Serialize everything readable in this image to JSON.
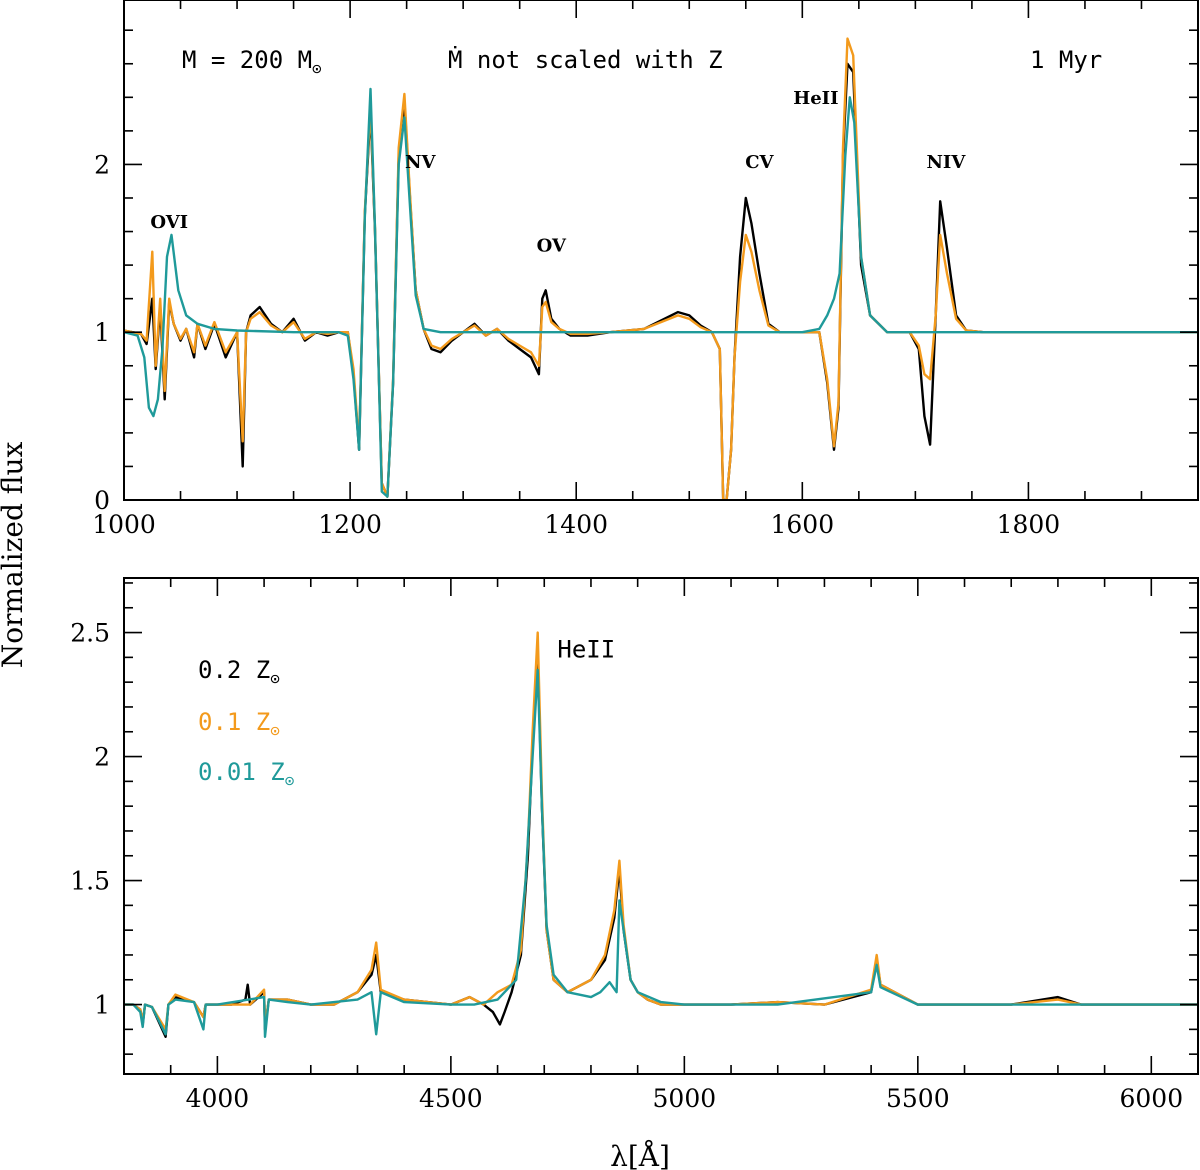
{
  "figure": {
    "ylabel": "Normalized flux",
    "xlabel": "λ[Å]"
  },
  "legend": [
    {
      "label": "0.2 Z",
      "color": "#000000"
    },
    {
      "label": "0.1 Z",
      "color": "#f39a1c"
    },
    {
      "label": "0.01 Z",
      "color": "#1f9a9a"
    }
  ],
  "solar_symbol": "⊙",
  "chart_data": [
    {
      "type": "line",
      "title": "",
      "annotations": {
        "mass": "M = 200 M",
        "mdot": "Ṁ not scaled with Z",
        "age": "1 Myr"
      },
      "line_labels": [
        {
          "text": "OVI",
          "x": 1040,
          "y": 1.62
        },
        {
          "text": "NV",
          "x": 1262,
          "y": 1.98
        },
        {
          "text": "OV",
          "x": 1378,
          "y": 1.48
        },
        {
          "text": "CV",
          "x": 1562,
          "y": 1.98
        },
        {
          "text": "HeII",
          "x": 1612,
          "y": 2.36
        },
        {
          "text": "NIV",
          "x": 1727,
          "y": 1.98
        }
      ],
      "xlim": [
        1000,
        1950
      ],
      "ylim": [
        0,
        2.98
      ],
      "xticks": [
        1000,
        1200,
        1400,
        1600,
        1800
      ],
      "xtick_labels": [
        "1000",
        "1200",
        "1400",
        "1600",
        "1800"
      ],
      "yticks": [
        0,
        1,
        2
      ],
      "ytick_labels": [
        "0",
        "1",
        "2"
      ],
      "series": [
        {
          "name": "0.2 Z⊙",
          "color": "#000000",
          "x": [
            1000,
            1015,
            1020,
            1025,
            1028,
            1032,
            1036,
            1040,
            1044,
            1050,
            1055,
            1062,
            1065,
            1072,
            1080,
            1090,
            1100,
            1105,
            1108,
            1112,
            1120,
            1130,
            1140,
            1150,
            1160,
            1170,
            1180,
            1190,
            1198,
            1203,
            1208,
            1213,
            1218,
            1222,
            1228,
            1233,
            1238,
            1243,
            1248,
            1253,
            1258,
            1265,
            1272,
            1280,
            1290,
            1300,
            1310,
            1320,
            1330,
            1340,
            1350,
            1360,
            1367,
            1370,
            1373,
            1378,
            1385,
            1395,
            1410,
            1430,
            1460,
            1490,
            1500,
            1510,
            1520,
            1527,
            1530,
            1533,
            1537,
            1540,
            1545,
            1550,
            1555,
            1562,
            1570,
            1580,
            1600,
            1615,
            1622,
            1628,
            1632,
            1636,
            1640,
            1645,
            1652,
            1660,
            1675,
            1695,
            1703,
            1708,
            1713,
            1718,
            1722,
            1728,
            1736,
            1745,
            1760,
            1780,
            1800,
            1820,
            1850,
            1900,
            1950
          ],
          "y": [
            1.01,
            0.99,
            0.93,
            1.2,
            0.78,
            1.15,
            0.6,
            1.18,
            1.05,
            0.95,
            1.02,
            0.85,
            1.05,
            0.9,
            1.05,
            0.85,
            1.0,
            0.2,
            1.0,
            1.1,
            1.15,
            1.05,
            1.0,
            1.08,
            0.95,
            1.0,
            0.98,
            1.0,
            1.0,
            0.75,
            0.3,
            1.7,
            2.32,
            1.6,
            0.1,
            0.02,
            0.7,
            2.05,
            2.38,
            1.8,
            1.25,
            1.02,
            0.9,
            0.88,
            0.95,
            1.0,
            1.05,
            0.98,
            1.02,
            0.95,
            0.9,
            0.85,
            0.75,
            1.2,
            1.25,
            1.08,
            1.02,
            0.98,
            0.98,
            1.0,
            1.02,
            1.12,
            1.1,
            1.04,
            1.0,
            0.9,
            0.0,
            0.0,
            0.3,
            0.85,
            1.45,
            1.8,
            1.65,
            1.35,
            1.05,
            1.0,
            1.0,
            1.0,
            0.7,
            0.3,
            0.55,
            2.05,
            2.6,
            2.55,
            1.4,
            1.1,
            1.0,
            1.0,
            0.9,
            0.5,
            0.33,
            1.1,
            1.78,
            1.5,
            1.1,
            1.01,
            1.0,
            1.0,
            1.0,
            1.0,
            1.0,
            1.0,
            1.0
          ]
        },
        {
          "name": "0.1 Z⊙",
          "color": "#f39a1c",
          "x": [
            1000,
            1015,
            1020,
            1025,
            1028,
            1032,
            1036,
            1040,
            1044,
            1050,
            1055,
            1062,
            1065,
            1072,
            1080,
            1090,
            1100,
            1105,
            1108,
            1112,
            1120,
            1130,
            1140,
            1150,
            1160,
            1170,
            1180,
            1190,
            1198,
            1203,
            1208,
            1213,
            1218,
            1222,
            1228,
            1233,
            1238,
            1243,
            1248,
            1253,
            1258,
            1265,
            1272,
            1280,
            1290,
            1300,
            1310,
            1320,
            1330,
            1340,
            1350,
            1360,
            1367,
            1370,
            1373,
            1378,
            1385,
            1395,
            1410,
            1430,
            1460,
            1490,
            1500,
            1510,
            1520,
            1527,
            1530,
            1533,
            1537,
            1540,
            1545,
            1550,
            1555,
            1562,
            1570,
            1580,
            1600,
            1615,
            1622,
            1628,
            1632,
            1636,
            1640,
            1645,
            1652,
            1660,
            1675,
            1695,
            1703,
            1708,
            1713,
            1718,
            1722,
            1728,
            1736,
            1745,
            1760,
            1780,
            1800,
            1820,
            1850,
            1900,
            1950
          ],
          "y": [
            1.01,
            0.99,
            0.95,
            1.48,
            0.8,
            1.2,
            0.65,
            1.2,
            1.05,
            0.96,
            1.02,
            0.88,
            1.05,
            0.92,
            1.06,
            0.88,
            1.0,
            0.35,
            1.0,
            1.08,
            1.12,
            1.04,
            1.0,
            1.06,
            0.96,
            1.0,
            0.99,
            1.0,
            1.0,
            0.78,
            0.32,
            1.72,
            2.35,
            1.62,
            0.1,
            0.02,
            0.72,
            2.1,
            2.42,
            1.82,
            1.25,
            1.02,
            0.92,
            0.9,
            0.96,
            1.0,
            1.04,
            0.98,
            1.02,
            0.96,
            0.92,
            0.88,
            0.8,
            1.15,
            1.18,
            1.06,
            1.02,
            0.99,
            0.99,
            1.0,
            1.02,
            1.1,
            1.08,
            1.03,
            1.0,
            0.9,
            0.0,
            0.0,
            0.3,
            0.85,
            1.3,
            1.58,
            1.48,
            1.25,
            1.04,
            1.0,
            1.0,
            1.0,
            0.72,
            0.32,
            0.58,
            2.1,
            2.75,
            2.65,
            1.45,
            1.1,
            1.0,
            1.0,
            0.92,
            0.75,
            0.72,
            1.1,
            1.58,
            1.35,
            1.08,
            1.01,
            1.0,
            1.0,
            1.0,
            1.0,
            1.0,
            1.0,
            1.0
          ]
        },
        {
          "name": "0.01 Z⊙",
          "color": "#1f9a9a",
          "x": [
            1000,
            1012,
            1018,
            1022,
            1026,
            1030,
            1034,
            1038,
            1042,
            1048,
            1055,
            1065,
            1080,
            1100,
            1150,
            1190,
            1198,
            1203,
            1208,
            1213,
            1218,
            1222,
            1228,
            1233,
            1238,
            1243,
            1248,
            1253,
            1258,
            1265,
            1280,
            1300,
            1400,
            1500,
            1600,
            1615,
            1622,
            1628,
            1633,
            1638,
            1642,
            1646,
            1652,
            1660,
            1675,
            1700,
            1800,
            1950
          ],
          "y": [
            1.0,
            0.98,
            0.85,
            0.55,
            0.5,
            0.6,
            0.9,
            1.45,
            1.58,
            1.25,
            1.1,
            1.05,
            1.02,
            1.01,
            1.0,
            1.0,
            0.98,
            0.72,
            0.3,
            1.68,
            2.45,
            1.62,
            0.05,
            0.02,
            0.7,
            2.0,
            2.28,
            1.75,
            1.22,
            1.02,
            1.0,
            1.0,
            1.0,
            1.0,
            1.0,
            1.02,
            1.1,
            1.2,
            1.35,
            2.05,
            2.4,
            2.25,
            1.45,
            1.1,
            1.0,
            1.0,
            1.0,
            1.0
          ]
        }
      ]
    },
    {
      "type": "line",
      "title": "",
      "line_labels": [
        {
          "text": "HeII",
          "x": 4790,
          "y": 2.4
        }
      ],
      "xlim": [
        3800,
        6100
      ],
      "ylim": [
        0.72,
        2.72
      ],
      "xticks": [
        4000,
        4500,
        5000,
        5500,
        6000
      ],
      "xtick_labels": [
        "4000",
        "4500",
        "5000",
        "5500",
        "6000"
      ],
      "yticks": [
        1,
        1.5,
        2,
        2.5
      ],
      "ytick_labels": [
        "1",
        "1.5",
        "2",
        "2.5"
      ],
      "series": [
        {
          "name": "0.2 Z⊙",
          "color": "#000000",
          "x": [
            3800,
            3820,
            3835,
            3840,
            3845,
            3860,
            3889,
            3895,
            3910,
            3950,
            3970,
            3975,
            4000,
            4030,
            4060,
            4065,
            4070,
            4100,
            4102,
            4110,
            4150,
            4200,
            4250,
            4300,
            4330,
            4340,
            4350,
            4400,
            4500,
            4540,
            4570,
            4590,
            4605,
            4615,
            4630,
            4650,
            4665,
            4675,
            4686,
            4695,
            4705,
            4720,
            4750,
            4800,
            4830,
            4850,
            4861,
            4870,
            4885,
            4900,
            4921,
            4950,
            5000,
            5100,
            5200,
            5300,
            5400,
            5412,
            5420,
            5500,
            5700,
            5800,
            5850,
            6100
          ],
          "y": [
            1.0,
            1.0,
            0.98,
            0.92,
            1.0,
            0.99,
            0.87,
            1.0,
            1.03,
            1.01,
            0.95,
            1.0,
            1.0,
            1.0,
            1.02,
            1.08,
            1.0,
            1.05,
            0.9,
            1.02,
            1.02,
            1.0,
            1.0,
            1.05,
            1.12,
            1.2,
            1.05,
            1.02,
            1.0,
            1.03,
            1.0,
            0.97,
            0.92,
            0.97,
            1.05,
            1.2,
            1.6,
            2.05,
            2.42,
            1.8,
            1.3,
            1.1,
            1.05,
            1.1,
            1.18,
            1.35,
            1.55,
            1.3,
            1.1,
            1.05,
            1.02,
            1.0,
            1.0,
            1.0,
            1.01,
            1.0,
            1.05,
            1.18,
            1.08,
            1.0,
            1.0,
            1.03,
            1.0,
            1.0
          ]
        },
        {
          "name": "0.1 Z⊙",
          "color": "#f39a1c",
          "x": [
            3800,
            3820,
            3835,
            3840,
            3845,
            3860,
            3889,
            3895,
            3910,
            3950,
            3970,
            3975,
            4000,
            4030,
            4060,
            4070,
            4100,
            4102,
            4110,
            4150,
            4200,
            4250,
            4300,
            4330,
            4340,
            4350,
            4400,
            4500,
            4540,
            4570,
            4600,
            4630,
            4650,
            4665,
            4675,
            4686,
            4695,
            4705,
            4720,
            4750,
            4800,
            4830,
            4850,
            4861,
            4870,
            4885,
            4900,
            4921,
            4950,
            5000,
            5100,
            5200,
            5300,
            5400,
            5412,
            5420,
            5500,
            5700,
            5800,
            5850,
            6100
          ],
          "y": [
            1.0,
            1.0,
            0.98,
            0.93,
            1.0,
            0.99,
            0.9,
            1.0,
            1.04,
            1.01,
            0.95,
            1.0,
            1.0,
            1.0,
            1.0,
            1.0,
            1.06,
            0.91,
            1.02,
            1.02,
            1.0,
            1.0,
            1.05,
            1.14,
            1.25,
            1.06,
            1.02,
            1.0,
            1.03,
            1.0,
            1.05,
            1.08,
            1.22,
            1.65,
            2.1,
            2.5,
            1.85,
            1.3,
            1.1,
            1.05,
            1.1,
            1.2,
            1.38,
            1.58,
            1.32,
            1.1,
            1.05,
            1.02,
            1.0,
            1.0,
            1.0,
            1.01,
            1.0,
            1.06,
            1.2,
            1.08,
            1.0,
            1.0,
            1.02,
            1.0,
            1.0
          ]
        },
        {
          "name": "0.01 Z⊙",
          "color": "#1f9a9a",
          "x": [
            3800,
            3820,
            3835,
            3840,
            3845,
            3860,
            3889,
            3895,
            3910,
            3950,
            3970,
            3975,
            4000,
            4100,
            4102,
            4110,
            4150,
            4200,
            4300,
            4330,
            4340,
            4350,
            4400,
            4500,
            4550,
            4600,
            4640,
            4660,
            4675,
            4686,
            4695,
            4705,
            4720,
            4750,
            4800,
            4820,
            4840,
            4855,
            4861,
            4870,
            4885,
            4900,
            4950,
            5000,
            5200,
            5400,
            5412,
            5420,
            5500,
            5700,
            6100
          ],
          "y": [
            1.0,
            1.0,
            0.97,
            0.91,
            1.0,
            0.99,
            0.88,
            1.0,
            1.02,
            1.01,
            0.9,
            1.0,
            1.0,
            1.03,
            0.87,
            1.02,
            1.01,
            1.0,
            1.02,
            1.05,
            0.88,
            1.05,
            1.01,
            1.0,
            1.0,
            1.02,
            1.1,
            1.5,
            2.0,
            2.35,
            1.8,
            1.32,
            1.12,
            1.05,
            1.03,
            1.05,
            1.09,
            1.05,
            1.42,
            1.3,
            1.1,
            1.05,
            1.01,
            1.0,
            1.0,
            1.05,
            1.16,
            1.07,
            1.0,
            1.0,
            1.0
          ]
        }
      ]
    }
  ]
}
